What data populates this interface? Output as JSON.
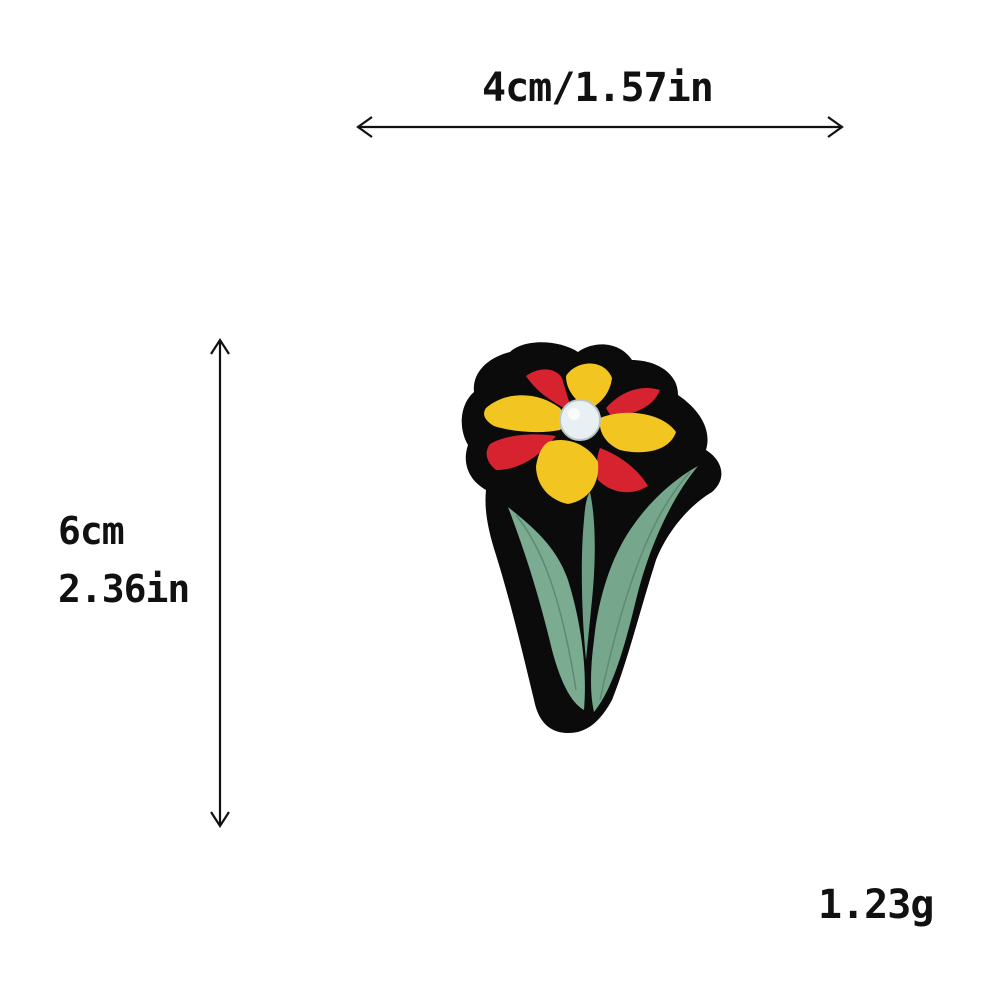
{
  "dimensions": {
    "width_label": "4cm/1.57in",
    "height_label_cm": "6cm",
    "height_label_in": "2.36in"
  },
  "weight_label": "1.23g",
  "colors": {
    "background": "#ffffff",
    "outline": "#0b0b0b",
    "petal_red": "#d7222f",
    "petal_yellow": "#f2c521",
    "center": "#e8f0f4",
    "leaf_green": "#79a98f",
    "text": "#111111"
  },
  "icons": {
    "width_arrow": "double-headed-horizontal-arrow",
    "height_arrow": "double-headed-vertical-arrow",
    "product": "embroidered-flower-patch"
  }
}
